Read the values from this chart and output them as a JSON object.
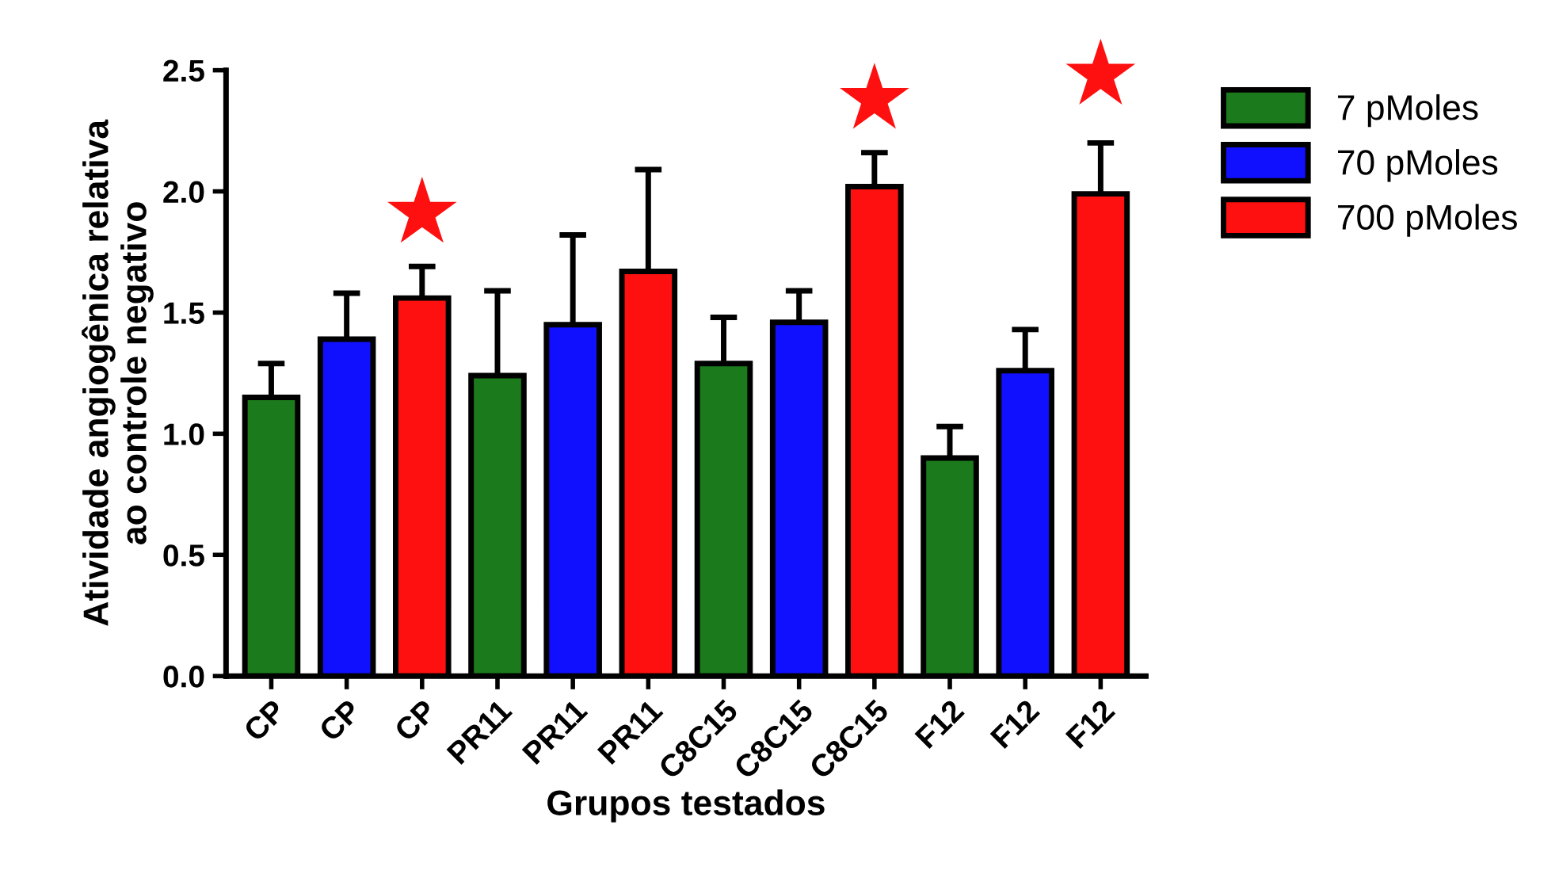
{
  "chart_data": {
    "type": "bar",
    "xlabel": "Grupos testados",
    "ylabel": "Atividade angiogênica relativa\nao controle negativo",
    "categories": [
      "CP",
      "CP",
      "CP",
      "PR11",
      "PR11",
      "PR11",
      "C8C15",
      "C8C15",
      "C8C15",
      "F12",
      "F12",
      "F12"
    ],
    "series": [
      {
        "name": "7 pMoles",
        "color": "#1b7a1b",
        "values": [
          1.15,
          null,
          null,
          1.24,
          null,
          null,
          1.29,
          null,
          null,
          0.9,
          null,
          null
        ],
        "errors": [
          [
            1.15,
            1.29
          ],
          null,
          null,
          [
            1.24,
            1.59
          ],
          null,
          null,
          [
            1.29,
            1.48
          ],
          null,
          null,
          [
            0.9,
            1.03
          ],
          null,
          null
        ]
      },
      {
        "name": "70 pMoles",
        "color": "#1010ff",
        "values": [
          null,
          1.39,
          null,
          null,
          1.45,
          null,
          null,
          1.46,
          null,
          null,
          1.26,
          null
        ],
        "errors": [
          null,
          [
            1.39,
            1.58
          ],
          null,
          null,
          [
            1.45,
            1.82
          ],
          null,
          null,
          [
            1.46,
            1.59
          ],
          null,
          null,
          [
            1.26,
            1.43
          ],
          null
        ]
      },
      {
        "name": "700 pMoles",
        "color": "#ff1010",
        "values": [
          null,
          null,
          1.56,
          null,
          null,
          1.67,
          null,
          null,
          2.02,
          null,
          null,
          1.99
        ],
        "errors": [
          null,
          null,
          [
            1.56,
            1.69
          ],
          null,
          null,
          [
            1.67,
            2.09
          ],
          null,
          null,
          [
            2.02,
            2.16
          ],
          null,
          null,
          [
            1.99,
            2.2
          ]
        ]
      },
      {
        "type": "scatter",
        "marker": "star",
        "color": "#ff1010",
        "values": [
          null,
          null,
          1.91,
          null,
          null,
          null,
          null,
          null,
          2.38,
          null,
          null,
          2.48
        ]
      }
    ],
    "ylim": [
      0,
      2.5
    ],
    "yticks": [
      {
        "value": 0,
        "label": "0.0"
      },
      0.5,
      {
        "value": 1,
        "label": "1.0"
      },
      1.5,
      {
        "value": 2,
        "label": "2.0"
      },
      2.5
    ],
    "grid": false,
    "legend": "top right"
  }
}
